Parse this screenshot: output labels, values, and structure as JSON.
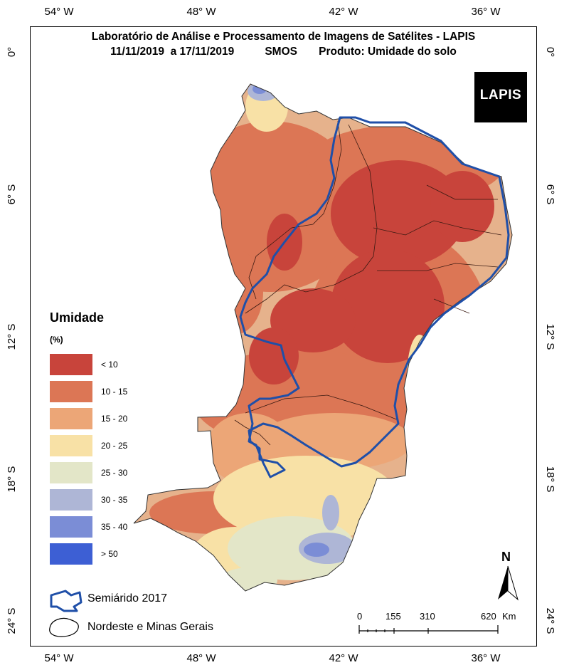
{
  "header": {
    "title_line1": "Laboratório de Análise e Processamento de Imagens de Satélites - LAPIS",
    "title_line2": "11/11/2019  a 17/11/2019          SMOS       Produto: Umidade do solo"
  },
  "logo": {
    "text": "LAPIS",
    "icon": "satellite-icon"
  },
  "axes": {
    "longitude_ticks": [
      "54° W",
      "48° W",
      "42° W",
      "36° W"
    ],
    "latitude_ticks": [
      "0°",
      "6° S",
      "12° S",
      "18° S",
      "24° S"
    ]
  },
  "legend": {
    "title": "Umidade",
    "unit": "(%)",
    "classes": [
      {
        "label": "< 10",
        "color": "#c8443b"
      },
      {
        "label": "10 - 15",
        "color": "#dc7655"
      },
      {
        "label": "15 - 20",
        "color": "#eca677"
      },
      {
        "label": "20 - 25",
        "color": "#f8e1a6"
      },
      {
        "label": "25 - 30",
        "color": "#e3e6c8"
      },
      {
        "label": "30 - 35",
        "color": "#aeb6d6"
      },
      {
        "label": "35 - 40",
        "color": "#7b8dd6"
      },
      {
        "label": "> 50",
        "color": "#3d5fd4"
      }
    ]
  },
  "boundary_legend": {
    "semiarid_label": "Semiárido 2017",
    "region_label": "Nordeste e Minas Gerais",
    "semiarid_color": "#1f4fa8"
  },
  "scale_bar": {
    "labels": [
      "0",
      "155",
      "310",
      "620"
    ],
    "unit": "Km"
  },
  "north_arrow": {
    "label": "N"
  }
}
